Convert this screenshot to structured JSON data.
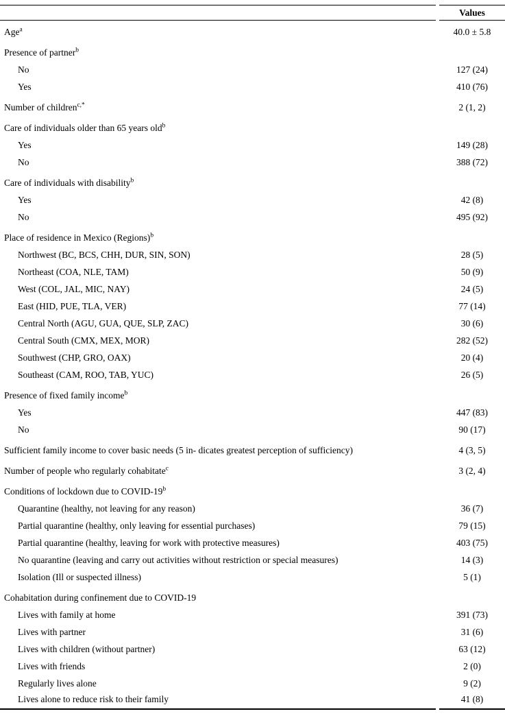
{
  "header": {
    "values_label": "Values"
  },
  "table": {
    "rows": [
      {
        "label": "Age",
        "sup": "a",
        "value": "40.0 ± 5.8",
        "indent": 0
      },
      {
        "label": "Presence of partner",
        "sup": "b",
        "value": "",
        "indent": 0
      },
      {
        "label": "No",
        "sup": "",
        "value": "127 (24)",
        "indent": 1
      },
      {
        "label": "Yes",
        "sup": "",
        "value": "410 (76)",
        "indent": 1
      },
      {
        "label": "Number of children",
        "sup": "c,*",
        "value": "2 (1, 2)",
        "indent": 0
      },
      {
        "label": "Care of individuals older than 65 years old",
        "sup": "b",
        "value": "",
        "indent": 0
      },
      {
        "label": "Yes",
        "sup": "",
        "value": "149 (28)",
        "indent": 1
      },
      {
        "label": "No",
        "sup": "",
        "value": "388 (72)",
        "indent": 1
      },
      {
        "label": "Care of individuals with disability",
        "sup": "b",
        "value": "",
        "indent": 0
      },
      {
        "label": "Yes",
        "sup": "",
        "value": "42 (8)",
        "indent": 1
      },
      {
        "label": "No",
        "sup": "",
        "value": "495 (92)",
        "indent": 1
      },
      {
        "label": "Place of residence in Mexico (Regions)",
        "sup": "b",
        "value": "",
        "indent": 0
      },
      {
        "label": "Northwest (BC, BCS, CHH, DUR, SIN, SON)",
        "sup": "",
        "value": "28 (5)",
        "indent": 1
      },
      {
        "label": "Northeast (COA, NLE, TAM)",
        "sup": "",
        "value": "50 (9)",
        "indent": 1
      },
      {
        "label": "West (COL, JAL, MIC, NAY)",
        "sup": "",
        "value": "24 (5)",
        "indent": 1
      },
      {
        "label": "East (HID, PUE, TLA, VER)",
        "sup": "",
        "value": "77 (14)",
        "indent": 1
      },
      {
        "label": "Central North (AGU, GUA, QUE, SLP, ZAC)",
        "sup": "",
        "value": "30 (6)",
        "indent": 1
      },
      {
        "label": "Central South (CMX, MEX, MOR)",
        "sup": "",
        "value": "282 (52)",
        "indent": 1
      },
      {
        "label": "Southwest (CHP, GRO, OAX)",
        "sup": "",
        "value": "20 (4)",
        "indent": 1
      },
      {
        "label": "Southeast (CAM, ROO, TAB, YUC)",
        "sup": "",
        "value": "26 (5)",
        "indent": 1
      },
      {
        "label": "Presence of fixed family income",
        "sup": "b",
        "value": "",
        "indent": 0
      },
      {
        "label": "Yes",
        "sup": "",
        "value": "447 (83)",
        "indent": 1
      },
      {
        "label": "No",
        "sup": "",
        "value": "90 (17)",
        "indent": 1
      },
      {
        "label": "Sufficient family income to cover basic needs (5 in- dicates greatest perception of sufficiency)",
        "sup": "",
        "value": "4 (3, 5)",
        "indent": 0
      },
      {
        "label": "Number of people who regularly cohabitate",
        "sup": "c",
        "value": "3 (2, 4)",
        "indent": 0
      },
      {
        "label": "Conditions of lockdown due to COVID-19",
        "sup": "b",
        "value": "",
        "indent": 0
      },
      {
        "label": "Quarantine (healthy, not leaving for any reason)",
        "sup": "",
        "value": "36 (7)",
        "indent": 1
      },
      {
        "label": "Partial quarantine (healthy, only leaving for essential purchases)",
        "sup": "",
        "value": "79 (15)",
        "indent": 1
      },
      {
        "label": "Partial quarantine (healthy, leaving for work with protective measures)",
        "sup": "",
        "value": "403 (75)",
        "indent": 1
      },
      {
        "label": "No quarantine (leaving and carry out activities without restriction or special measures)",
        "sup": "",
        "value": "14 (3)",
        "indent": 1
      },
      {
        "label": "Isolation (Ill or suspected illness)",
        "sup": "",
        "value": "5 (1)",
        "indent": 1
      },
      {
        "label": "Cohabitation during confinement due to COVID-19",
        "sup": "",
        "value": "",
        "indent": 0
      },
      {
        "label": "Lives with family at home",
        "sup": "",
        "value": "391 (73)",
        "indent": 1
      },
      {
        "label": "Lives with partner",
        "sup": "",
        "value": "31 (6)",
        "indent": 1
      },
      {
        "label": "Lives with children (without partner)",
        "sup": "",
        "value": "63 (12)",
        "indent": 1
      },
      {
        "label": "Lives with friends",
        "sup": "",
        "value": "2 (0)",
        "indent": 1
      },
      {
        "label": "Regularly lives alone",
        "sup": "",
        "value": "9 (2)",
        "indent": 1
      },
      {
        "label": "Lives alone to reduce risk to their family",
        "sup": "",
        "value": "41 (8)",
        "indent": 1
      }
    ]
  }
}
